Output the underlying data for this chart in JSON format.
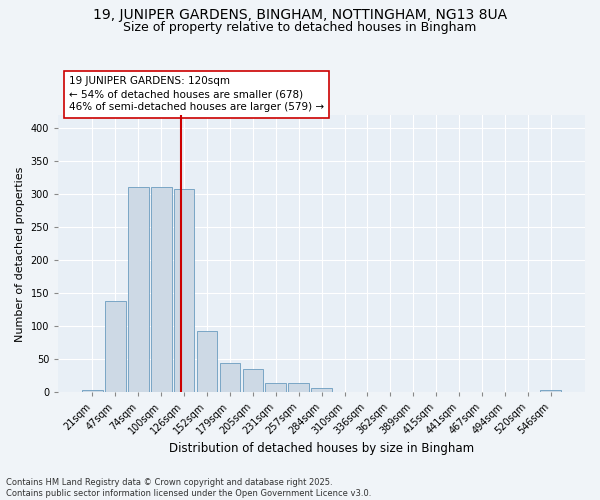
{
  "title1": "19, JUNIPER GARDENS, BINGHAM, NOTTINGHAM, NG13 8UA",
  "title2": "Size of property relative to detached houses in Bingham",
  "xlabel": "Distribution of detached houses by size in Bingham",
  "ylabel": "Number of detached properties",
  "bar_color": "#cdd9e5",
  "bar_edge_color": "#6a9cbf",
  "background_color": "#e8eff6",
  "grid_color": "#ffffff",
  "categories": [
    "21sqm",
    "47sqm",
    "74sqm",
    "100sqm",
    "126sqm",
    "152sqm",
    "179sqm",
    "205sqm",
    "231sqm",
    "257sqm",
    "284sqm",
    "310sqm",
    "336sqm",
    "362sqm",
    "389sqm",
    "415sqm",
    "441sqm",
    "467sqm",
    "494sqm",
    "520sqm",
    "546sqm"
  ],
  "values": [
    3,
    139,
    312,
    311,
    308,
    93,
    45,
    35,
    15,
    15,
    6,
    0,
    0,
    0,
    0,
    0,
    0,
    0,
    0,
    0,
    3
  ],
  "vline_x": 3.85,
  "vline_color": "#cc0000",
  "annotation_line1": "19 JUNIPER GARDENS: 120sqm",
  "annotation_line2": "← 54% of detached houses are smaller (678)",
  "annotation_line3": "46% of semi-detached houses are larger (579) →",
  "ylim": [
    0,
    420
  ],
  "yticks": [
    0,
    50,
    100,
    150,
    200,
    250,
    300,
    350,
    400
  ],
  "footer_text": "Contains HM Land Registry data © Crown copyright and database right 2025.\nContains public sector information licensed under the Open Government Licence v3.0.",
  "title1_fontsize": 10,
  "title2_fontsize": 9,
  "xlabel_fontsize": 8.5,
  "ylabel_fontsize": 8,
  "tick_fontsize": 7,
  "annotation_fontsize": 7.5,
  "footer_fontsize": 6
}
